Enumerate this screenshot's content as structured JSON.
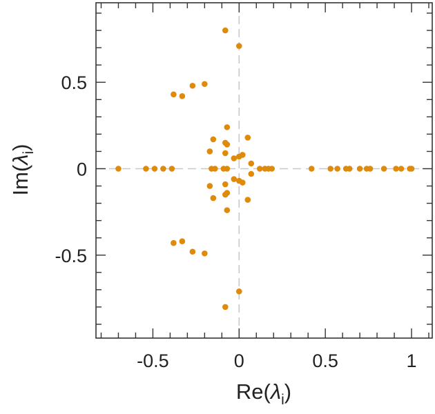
{
  "chart_data": {
    "type": "scatter",
    "xlabel_main": "Re(",
    "xlabel_symbol": "λ",
    "xlabel_sub": "i",
    "xlabel_close": ")",
    "ylabel_main": "Im(",
    "ylabel_symbol": "λ",
    "ylabel_sub": "i",
    "ylabel_close": ")",
    "xlim": [
      -0.83,
      1.12
    ],
    "ylim": [
      -0.98,
      0.96
    ],
    "xticks": [
      {
        "value": -0.5,
        "label": "-0.5"
      },
      {
        "value": 0,
        "label": "0"
      },
      {
        "value": 0.5,
        "label": "0.5"
      },
      {
        "value": 1,
        "label": "1"
      }
    ],
    "yticks": [
      {
        "value": 0.5,
        "label": "0.5"
      },
      {
        "value": 0,
        "label": "0"
      },
      {
        "value": -0.5,
        "label": "-0.5"
      }
    ],
    "reference_lines": {
      "x": 0,
      "y": 0
    },
    "marker_color": "#e08a0b",
    "points": [
      {
        "x": -0.7,
        "y": 0
      },
      {
        "x": -0.54,
        "y": 0
      },
      {
        "x": -0.49,
        "y": 0
      },
      {
        "x": -0.44,
        "y": 0
      },
      {
        "x": -0.39,
        "y": 0
      },
      {
        "x": -0.16,
        "y": 0
      },
      {
        "x": -0.14,
        "y": 0
      },
      {
        "x": -0.09,
        "y": 0
      },
      {
        "x": -0.07,
        "y": 0
      },
      {
        "x": 0.12,
        "y": 0
      },
      {
        "x": 0.15,
        "y": 0
      },
      {
        "x": 0.17,
        "y": 0
      },
      {
        "x": 0.19,
        "y": 0
      },
      {
        "x": 0.42,
        "y": 0
      },
      {
        "x": 0.53,
        "y": 0
      },
      {
        "x": 0.57,
        "y": 0
      },
      {
        "x": 0.62,
        "y": 0
      },
      {
        "x": 0.64,
        "y": 0
      },
      {
        "x": 0.7,
        "y": 0
      },
      {
        "x": 0.74,
        "y": 0
      },
      {
        "x": 0.76,
        "y": 0
      },
      {
        "x": 0.84,
        "y": 0
      },
      {
        "x": 0.91,
        "y": 0
      },
      {
        "x": 0.94,
        "y": 0
      },
      {
        "x": 0.99,
        "y": 0
      },
      {
        "x": 1.0,
        "y": 0
      },
      {
        "x": -0.08,
        "y": 0.8
      },
      {
        "x": 0.0,
        "y": 0.71
      },
      {
        "x": -0.08,
        "y": -0.8
      },
      {
        "x": 0.0,
        "y": -0.71
      },
      {
        "x": -0.38,
        "y": 0.43
      },
      {
        "x": -0.33,
        "y": 0.42
      },
      {
        "x": -0.27,
        "y": 0.48
      },
      {
        "x": -0.2,
        "y": 0.49
      },
      {
        "x": -0.38,
        "y": -0.43
      },
      {
        "x": -0.33,
        "y": -0.42
      },
      {
        "x": -0.27,
        "y": -0.48
      },
      {
        "x": -0.2,
        "y": -0.49
      },
      {
        "x": -0.07,
        "y": 0.24
      },
      {
        "x": -0.15,
        "y": 0.17
      },
      {
        "x": -0.17,
        "y": 0.1
      },
      {
        "x": -0.08,
        "y": 0.15
      },
      {
        "x": -0.07,
        "y": 0.14
      },
      {
        "x": -0.08,
        "y": 0.09
      },
      {
        "x": 0.05,
        "y": 0.18
      },
      {
        "x": 0.0,
        "y": 0.07
      },
      {
        "x": 0.02,
        "y": 0.08
      },
      {
        "x": -0.03,
        "y": 0.06
      },
      {
        "x": 0.07,
        "y": 0.03
      },
      {
        "x": -0.07,
        "y": -0.24
      },
      {
        "x": -0.15,
        "y": -0.17
      },
      {
        "x": -0.17,
        "y": -0.1
      },
      {
        "x": -0.08,
        "y": -0.15
      },
      {
        "x": -0.07,
        "y": -0.14
      },
      {
        "x": -0.08,
        "y": -0.09
      },
      {
        "x": 0.05,
        "y": -0.18
      },
      {
        "x": 0.0,
        "y": -0.07
      },
      {
        "x": 0.02,
        "y": -0.08
      },
      {
        "x": -0.03,
        "y": -0.06
      },
      {
        "x": 0.07,
        "y": -0.03
      }
    ]
  }
}
